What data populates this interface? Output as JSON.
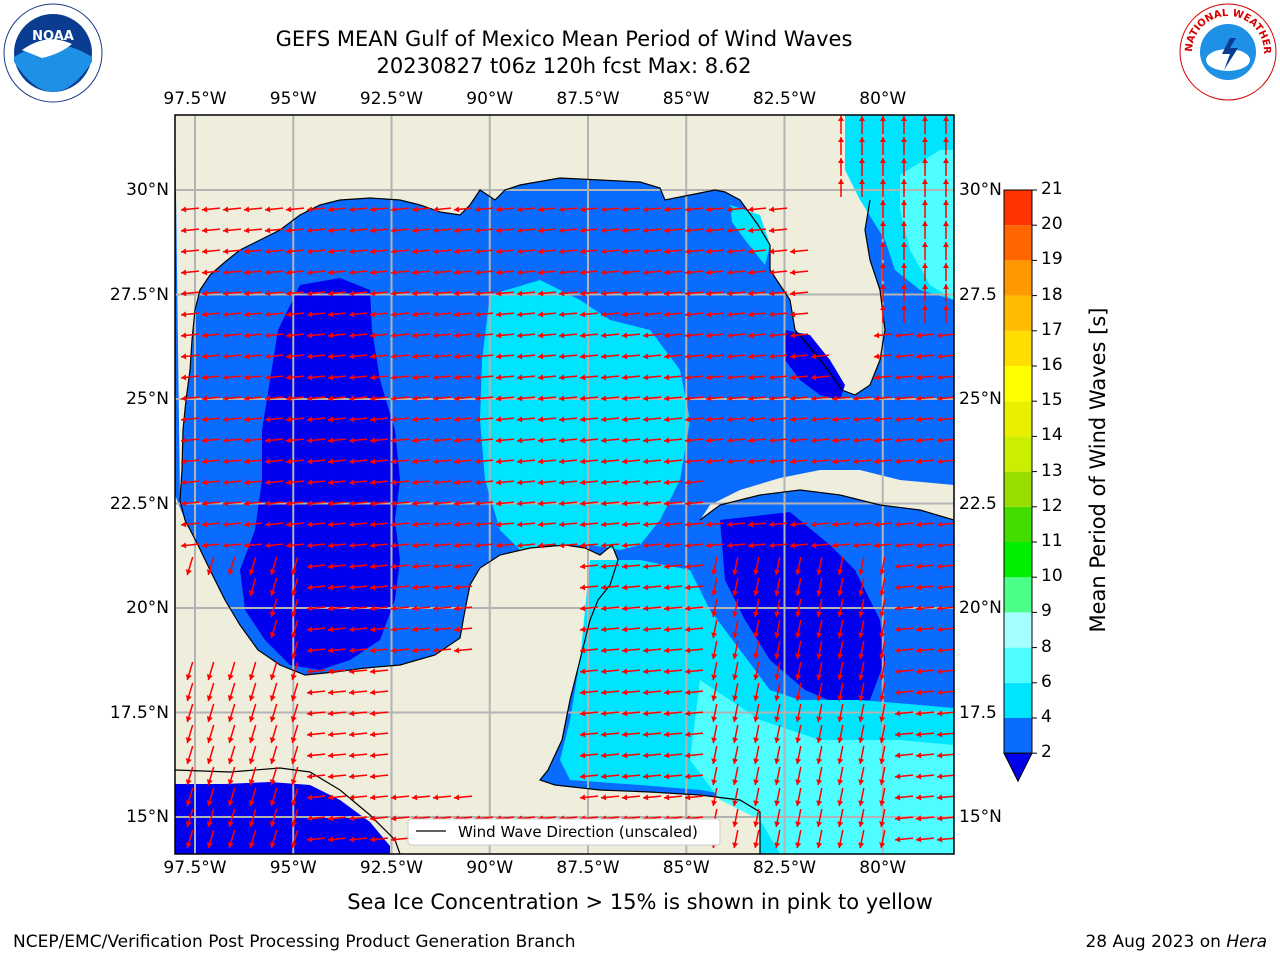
{
  "title": {
    "line1": "GEFS MEAN Gulf of Mexico Mean Period of Wind Waves",
    "line2": "20230827 t06z 120h fcst   Max: 8.62"
  },
  "axes": {
    "lon_ticks": [
      "97.5°W",
      "95°W",
      "92.5°W",
      "90°W",
      "87.5°W",
      "85°W",
      "82.5°W",
      "80°W"
    ],
    "lat_ticks_left": [
      "30°N",
      "27.5°N",
      "25°N",
      "22.5°N",
      "20°N",
      "17.5°N",
      "15°N"
    ],
    "lat_ticks_right": [
      "30°N",
      "27.5",
      "25°N",
      "22.5",
      "20°N",
      "17.5",
      "15°N"
    ]
  },
  "legend": {
    "label": "Wind Wave Direction (unscaled)"
  },
  "colorbar": {
    "title": "Mean Period of Wind Waves [s]",
    "levels": [
      "2",
      "4",
      "6",
      "8",
      "9",
      "10",
      "11",
      "12",
      "13",
      "14",
      "15",
      "16",
      "17",
      "18",
      "19",
      "20",
      "21"
    ],
    "colors": [
      "#0a6cff",
      "#00e5ff",
      "#4dfdff",
      "#a6ffff",
      "#4cff88",
      "#00ee00",
      "#44dd00",
      "#99dd00",
      "#ccee00",
      "#e8f000",
      "#ffff00",
      "#ffdd00",
      "#ffbb00",
      "#ff9900",
      "#ff6600",
      "#ff3300"
    ],
    "extend_color": "#0000ee"
  },
  "subtitle": "Sea Ice Concentration > 15% is shown in pink to yellow",
  "footer": {
    "left": "NCEP/EMC/Verification Post Processing Product Generation Branch",
    "right_date": "28 Aug 2023 on",
    "right_host": "Hera"
  },
  "logos": {
    "left": "NOAA",
    "right": "NATIONAL WEATHER SERVICE"
  },
  "map_colors": {
    "land": "#efeddc",
    "water_dark": "#0000ee",
    "water_mid": "#0a6cff",
    "water_cyan": "#00e5ff",
    "water_light": "#4dfdff",
    "arrow": "#ff0000"
  }
}
